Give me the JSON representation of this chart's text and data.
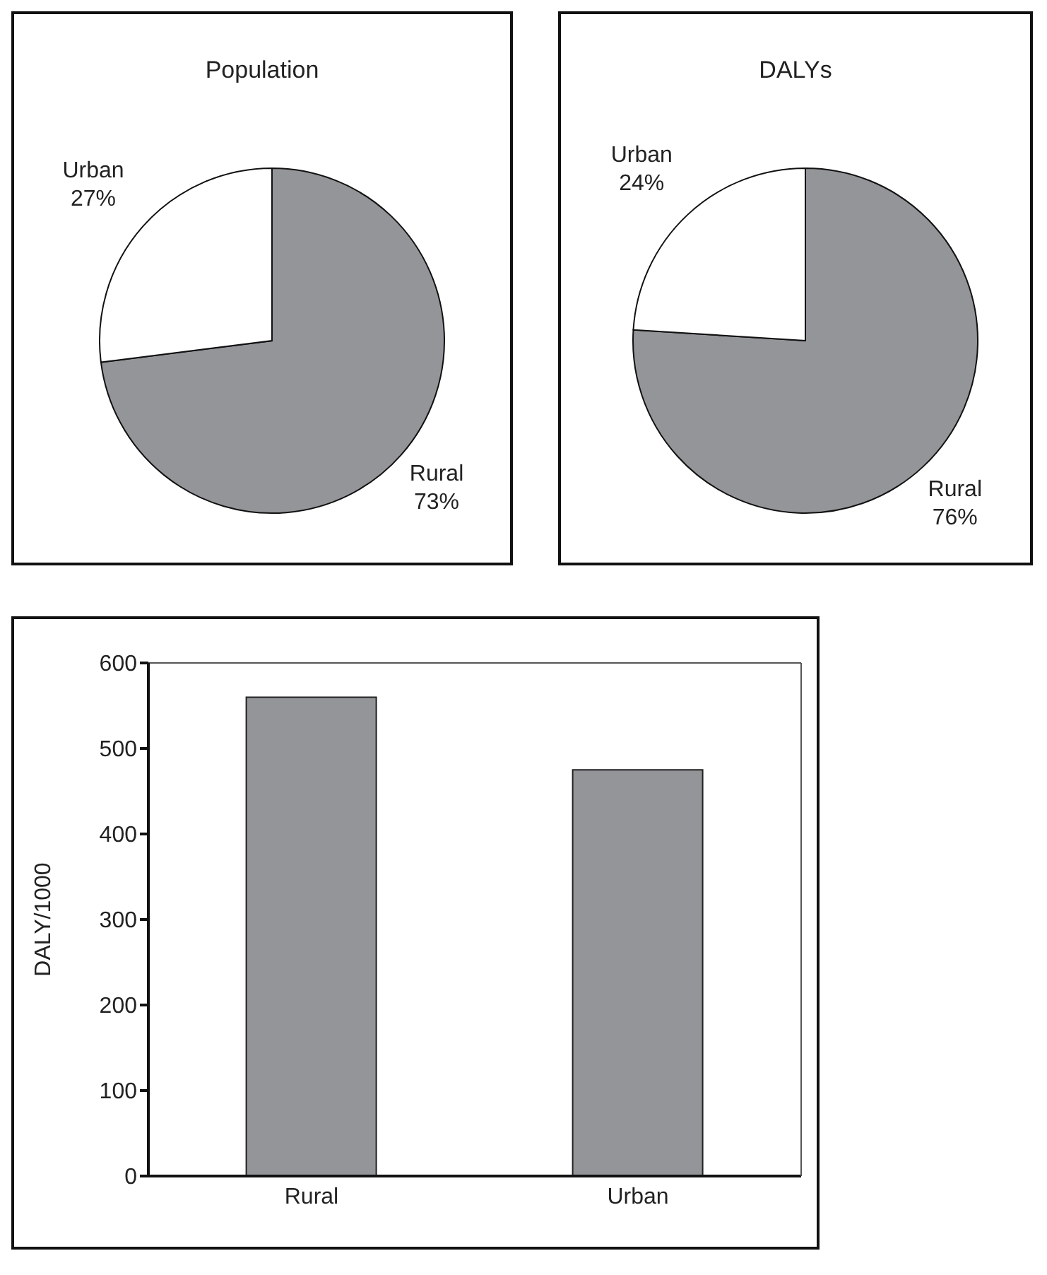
{
  "chart_data": [
    {
      "type": "pie",
      "title": "Population",
      "categories": [
        "Rural",
        "Urban"
      ],
      "values": [
        73,
        27
      ],
      "colors": [
        "#949599",
        "#ffffff"
      ],
      "value_labels": [
        "73%",
        "27%"
      ]
    },
    {
      "type": "pie",
      "title": "DALYs",
      "categories": [
        "Rural",
        "Urban"
      ],
      "values": [
        76,
        24
      ],
      "colors": [
        "#949599",
        "#ffffff"
      ],
      "value_labels": [
        "76%",
        "24%"
      ]
    },
    {
      "type": "bar",
      "categories": [
        "Rural",
        "Urban"
      ],
      "values": [
        560,
        475
      ],
      "color": "#949599",
      "ylabel": "DALY/1000",
      "ylim": [
        0,
        600
      ],
      "yticks": [
        0,
        100,
        200,
        300,
        400,
        500,
        600
      ],
      "grid": false,
      "legend": false
    }
  ]
}
